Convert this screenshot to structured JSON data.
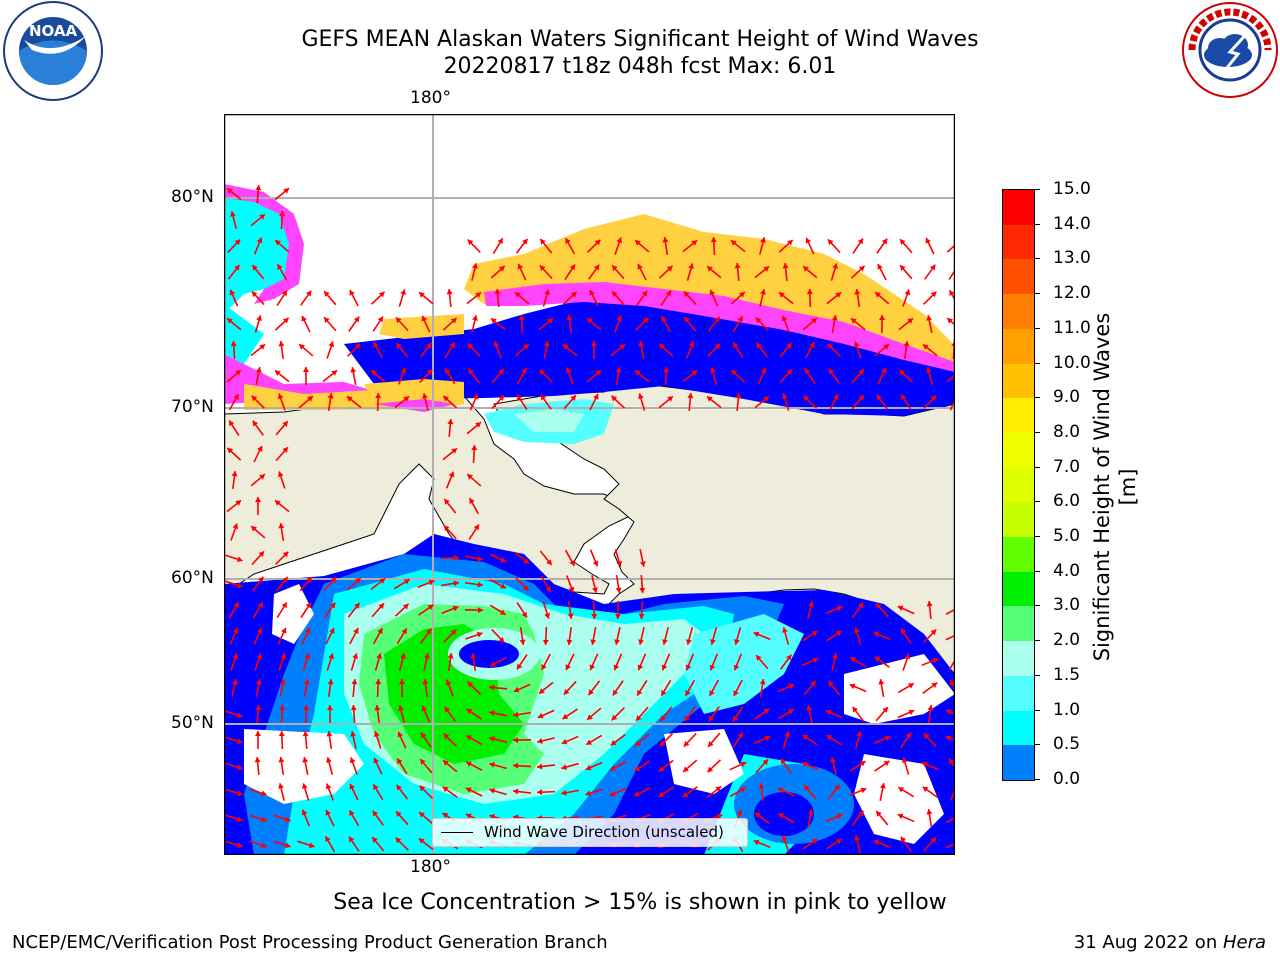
{
  "title": {
    "line1": "GEFS MEAN Alaskan Waters Significant Height of Wind Waves",
    "line2": "20220817 t18z 048h fcst   Max: 6.01"
  },
  "map": {
    "lon_label_top": "180°",
    "lon_label_bottom": "180°",
    "lat_labels": [
      "80°N",
      "70°N",
      "60°N",
      "50°N"
    ],
    "colors": {
      "land": "#eeeddc",
      "grid": "#b0b0b0",
      "arrows": "#ff0000",
      "ice_pink": "#ff44ff",
      "ice_yellow": "#ffd040"
    }
  },
  "legend": {
    "label": "Wind Wave Direction (unscaled)"
  },
  "colorbar": {
    "title": "Significant Height of Wind Waves [m]",
    "ticks": [
      "15.0",
      "14.0",
      "13.0",
      "12.0",
      "11.0",
      "10.0",
      "9.0",
      "8.0",
      "7.0",
      "6.0",
      "5.0",
      "4.0",
      "3.0",
      "2.0",
      "1.5",
      "1.0",
      "0.5",
      "0.0"
    ],
    "colors": [
      "#ff0000",
      "#ff2800",
      "#ff5000",
      "#ff8000",
      "#ffa000",
      "#ffc000",
      "#ffee00",
      "#eeff00",
      "#ddff00",
      "#c8ff00",
      "#60ff00",
      "#00ee00",
      "#55ff77",
      "#aaffee",
      "#55ffff",
      "#00ffff",
      "#0080ff",
      "#0000ff"
    ]
  },
  "notes": {
    "ice": "Sea Ice Concentration > 15% is shown in pink to yellow"
  },
  "footer": {
    "left": "NCEP/EMC/Verification Post Processing Product Generation Branch",
    "date": "31 Aug 2022 on ",
    "machine": "Hera"
  },
  "logos": {
    "noaa_text": "NOAA",
    "noaa_ring": "NATIONAL OCEANIC AND ATMOSPHERIC ADMINISTRATION · U.S. DEPARTMENT OF COMMERCE",
    "nws_ring": "NATIONAL WEATHER SERVICE"
  }
}
